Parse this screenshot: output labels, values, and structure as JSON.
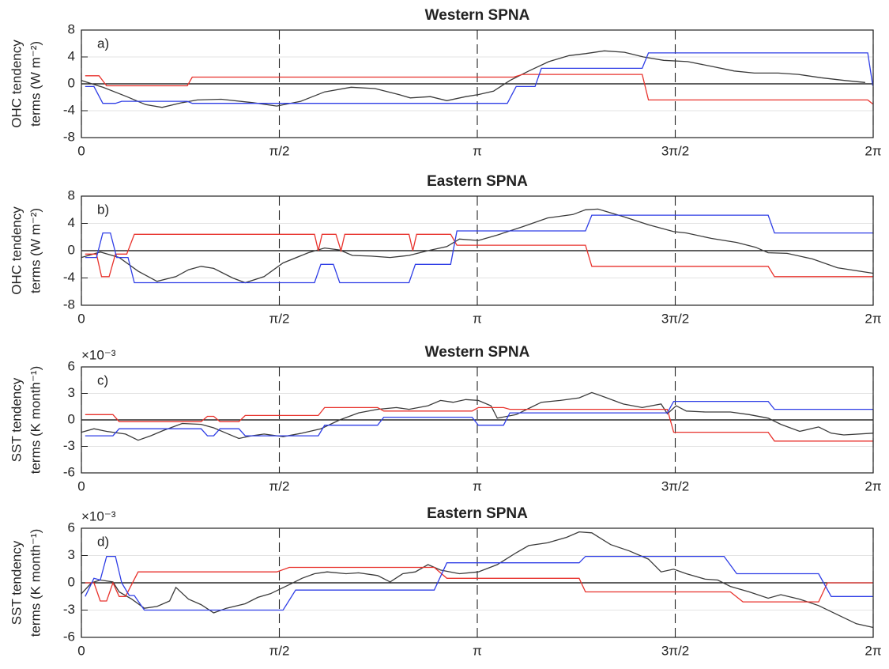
{
  "chart_data": [
    {
      "type": "line",
      "title": "Western SPNA",
      "panel_label": "a)",
      "ylabel": [
        "OHC tendency",
        "terms (W m⁻²)"
      ],
      "xlim": [
        0,
        6.2832
      ],
      "ylim": [
        -8,
        8
      ],
      "xticks": [
        0,
        {
          "value": 1.5708,
          "label": "π/2"
        },
        {
          "value": 3.1416,
          "label": "π"
        },
        {
          "value": 4.7124,
          "label": "3π/2"
        },
        {
          "value": 6.2832,
          "label": "2π"
        }
      ],
      "yticks": [
        -8,
        -4,
        0,
        4,
        8
      ],
      "xgrid": "dashed",
      "ygrid": true,
      "zero_line": true,
      "series": [
        {
          "color": "#3a3a3a",
          "x": [
            0,
            0.17,
            0.36,
            0.51,
            0.64,
            0.8,
            0.92,
            1.11,
            1.36,
            1.55,
            1.74,
            1.93,
            2.14,
            2.33,
            2.52,
            2.61,
            2.77,
            2.9,
            3.05,
            3.15,
            3.27,
            3.4,
            3.55,
            3.71,
            3.87,
            4.0,
            4.15,
            4.31,
            4.46,
            4.62,
            4.81,
            5.0,
            5.18,
            5.34,
            5.53,
            5.69,
            5.87,
            6.06,
            6.22
          ],
          "values": [
            0.5,
            -0.5,
            -1.9,
            -3.1,
            -3.5,
            -2.8,
            -2.4,
            -2.3,
            -2.8,
            -3.3,
            -2.6,
            -1.2,
            -0.5,
            -0.7,
            -1.6,
            -2.1,
            -1.9,
            -2.5,
            -1.9,
            -1.6,
            -1.1,
            0.5,
            1.9,
            3.3,
            4.2,
            4.5,
            4.9,
            4.7,
            4.0,
            3.5,
            3.3,
            2.6,
            1.9,
            1.6,
            1.6,
            1.4,
            0.9,
            0.5,
            0.2
          ]
        },
        {
          "color": "#e8322c",
          "x": [
            0.03,
            0.14,
            0.2,
            0.84,
            0.88,
            3.43,
            3.5,
            4.45,
            4.5,
            6.24,
            6.28
          ],
          "values": [
            1.2,
            1.2,
            -0.3,
            -0.3,
            1.0,
            1.0,
            1.4,
            1.4,
            -2.4,
            -2.4,
            -3.0
          ]
        },
        {
          "color": "#2f3ee6",
          "x": [
            0.03,
            0.1,
            0.17,
            0.27,
            0.32,
            0.84,
            0.88,
            3.38,
            3.45,
            3.6,
            3.65,
            4.45,
            4.5,
            6.24,
            6.28
          ],
          "values": [
            -0.4,
            -0.4,
            -2.9,
            -2.9,
            -2.6,
            -2.6,
            -2.9,
            -2.9,
            -0.4,
            -0.4,
            2.3,
            2.3,
            4.6,
            4.6,
            -0.3
          ]
        }
      ]
    },
    {
      "type": "line",
      "title": "Eastern SPNA",
      "panel_label": "b)",
      "ylabel": [
        "OHC tendency",
        "terms (W m⁻²)"
      ],
      "xlim": [
        0,
        6.2832
      ],
      "ylim": [
        -8,
        8
      ],
      "xticks": [
        0,
        {
          "value": 1.5708,
          "label": "π/2"
        },
        {
          "value": 3.1416,
          "label": "π"
        },
        {
          "value": 4.7124,
          "label": "3π/2"
        },
        {
          "value": 6.2832,
          "label": "2π"
        }
      ],
      "yticks": [
        -8,
        -4,
        0,
        4,
        8
      ],
      "xgrid": "dashed",
      "ygrid": true,
      "zero_line": true,
      "series": [
        {
          "color": "#3a3a3a",
          "x": [
            0,
            0.15,
            0.3,
            0.45,
            0.6,
            0.75,
            0.85,
            0.95,
            1.05,
            1.2,
            1.3,
            1.45,
            1.6,
            1.8,
            1.93,
            2.05,
            2.15,
            2.3,
            2.45,
            2.6,
            2.75,
            2.9,
            3.0,
            3.15,
            3.3,
            3.5,
            3.7,
            3.9,
            4.0,
            4.1,
            4.3,
            4.5,
            4.7,
            4.8,
            5.0,
            5.2,
            5.35,
            5.45,
            5.6,
            5.8,
            6.0,
            6.28
          ],
          "values": [
            -1.0,
            -0.2,
            -1.0,
            -3.0,
            -4.5,
            -3.8,
            -2.8,
            -2.3,
            -2.6,
            -4.0,
            -4.7,
            -3.8,
            -1.8,
            -0.3,
            0.4,
            0.1,
            -0.7,
            -0.8,
            -1.0,
            -0.7,
            0.0,
            0.6,
            1.7,
            1.5,
            2.3,
            3.5,
            4.8,
            5.3,
            6.0,
            6.1,
            5.0,
            3.8,
            2.8,
            2.6,
            1.8,
            1.2,
            0.5,
            -0.3,
            -0.4,
            -1.2,
            -2.5,
            -3.3
          ]
        },
        {
          "color": "#e8322c",
          "x": [
            0.03,
            0.12,
            0.16,
            0.22,
            0.27,
            0.36,
            0.42,
            1.85,
            1.88,
            1.91,
            2.02,
            2.06,
            2.09,
            2.6,
            2.63,
            2.66,
            2.93,
            2.98,
            4.0,
            4.05,
            5.45,
            5.5,
            6.28
          ],
          "values": [
            -0.5,
            -0.5,
            -3.8,
            -3.8,
            -0.5,
            -0.5,
            2.4,
            2.4,
            0,
            2.4,
            2.4,
            0,
            2.4,
            2.4,
            0,
            2.4,
            2.4,
            0.8,
            0.8,
            -2.3,
            -2.3,
            -3.8,
            -3.8
          ]
        },
        {
          "color": "#2f3ee6",
          "x": [
            0.03,
            0.12,
            0.17,
            0.23,
            0.28,
            0.37,
            0.42,
            1.85,
            1.9,
            2.0,
            2.05,
            2.6,
            2.65,
            2.93,
            2.98,
            4.0,
            4.05,
            5.45,
            5.5,
            6.28
          ],
          "values": [
            -1.0,
            -1.0,
            2.6,
            2.6,
            -1.0,
            -1.0,
            -4.7,
            -4.7,
            -2.0,
            -2.0,
            -4.7,
            -4.7,
            -2.0,
            -2.0,
            2.9,
            2.9,
            5.2,
            5.2,
            2.6,
            2.6
          ]
        }
      ]
    },
    {
      "type": "line",
      "title": "Western SPNA",
      "panel_label": "c)",
      "ylabel": [
        "SST tendency",
        "terms (K month⁻¹)"
      ],
      "y_multiplier": "×10⁻³",
      "xlim": [
        0,
        6.2832
      ],
      "ylim": [
        -6,
        6
      ],
      "xticks": [
        0,
        {
          "value": 1.5708,
          "label": "π/2"
        },
        {
          "value": 3.1416,
          "label": "π"
        },
        {
          "value": 4.7124,
          "label": "3π/2"
        },
        {
          "value": 6.2832,
          "label": "2π"
        }
      ],
      "yticks": [
        -6,
        -3,
        0,
        3,
        6
      ],
      "xgrid": "dashed",
      "ygrid": true,
      "zero_line": true,
      "series": [
        {
          "color": "#3a3a3a",
          "x": [
            0,
            0.1,
            0.2,
            0.35,
            0.45,
            0.55,
            0.65,
            0.8,
            0.95,
            1.05,
            1.15,
            1.25,
            1.35,
            1.45,
            1.6,
            1.75,
            1.9,
            2.05,
            2.2,
            2.35,
            2.5,
            2.6,
            2.75,
            2.85,
            2.95,
            3.05,
            3.15,
            3.25,
            3.3,
            3.45,
            3.55,
            3.65,
            3.8,
            3.95,
            4.05,
            4.15,
            4.3,
            4.45,
            4.6,
            4.65,
            4.72,
            4.8,
            4.95,
            5.15,
            5.3,
            5.45,
            5.55,
            5.7,
            5.85,
            5.95,
            6.05,
            6.28
          ],
          "values": [
            -1.4,
            -1.0,
            -1.3,
            -1.6,
            -2.3,
            -1.8,
            -1.2,
            -0.4,
            -0.5,
            -0.9,
            -1.5,
            -2.1,
            -1.8,
            -1.6,
            -1.9,
            -1.5,
            -1.0,
            0.0,
            0.8,
            1.2,
            1.4,
            1.2,
            1.6,
            2.2,
            2.0,
            2.3,
            2.2,
            1.6,
            0.2,
            0.6,
            1.3,
            2.0,
            2.2,
            2.5,
            3.1,
            2.6,
            1.8,
            1.4,
            1.8,
            0.7,
            1.6,
            1.0,
            0.9,
            0.9,
            0.6,
            0.2,
            -0.5,
            -1.3,
            -0.8,
            -1.5,
            -1.7,
            -1.5
          ]
        },
        {
          "color": "#e8322c",
          "x": [
            0.03,
            0.25,
            0.3,
            0.95,
            1.0,
            1.05,
            1.1,
            1.25,
            1.3,
            1.88,
            1.93,
            2.35,
            2.4,
            3.1,
            3.15,
            3.35,
            3.4,
            4.65,
            4.7,
            5.45,
            5.5,
            6.28
          ],
          "values": [
            0.6,
            0.6,
            -0.2,
            -0.2,
            0.4,
            0.4,
            -0.2,
            -0.2,
            0.5,
            0.5,
            1.4,
            1.4,
            1.0,
            1.0,
            1.4,
            1.4,
            1.2,
            1.2,
            -1.4,
            -1.4,
            -2.4,
            -2.4
          ]
        },
        {
          "color": "#2f3ee6",
          "x": [
            0.03,
            0.25,
            0.3,
            0.95,
            1.0,
            1.05,
            1.1,
            1.25,
            1.3,
            1.88,
            1.93,
            2.35,
            2.4,
            3.1,
            3.15,
            3.35,
            3.4,
            4.65,
            4.7,
            5.45,
            5.5,
            6.28
          ],
          "values": [
            -1.8,
            -1.8,
            -1.0,
            -1.0,
            -1.8,
            -1.8,
            -1.0,
            -1.0,
            -1.8,
            -1.8,
            -0.6,
            -0.6,
            0.3,
            0.3,
            -0.6,
            -0.6,
            0.8,
            0.8,
            2.1,
            2.1,
            1.2,
            1.2
          ]
        }
      ]
    },
    {
      "type": "line",
      "title": "Eastern SPNA",
      "panel_label": "d)",
      "ylabel": [
        "SST tendency",
        "terms (K month⁻¹)"
      ],
      "y_multiplier": "×10⁻³",
      "xlim": [
        0,
        6.2832
      ],
      "ylim": [
        -6,
        6
      ],
      "xticks": [
        0,
        {
          "value": 1.5708,
          "label": "π/2"
        },
        {
          "value": 3.1416,
          "label": "π"
        },
        {
          "value": 4.7124,
          "label": "3π/2"
        },
        {
          "value": 6.2832,
          "label": "2π"
        }
      ],
      "yticks": [
        -6,
        -3,
        0,
        3,
        6
      ],
      "xgrid": "dashed",
      "ygrid": true,
      "zero_line": true,
      "series": [
        {
          "color": "#3a3a3a",
          "x": [
            0,
            0.08,
            0.15,
            0.25,
            0.3,
            0.4,
            0.5,
            0.6,
            0.7,
            0.75,
            0.85,
            0.95,
            1.05,
            1.15,
            1.3,
            1.4,
            1.5,
            1.65,
            1.75,
            1.85,
            1.95,
            2.1,
            2.2,
            2.35,
            2.45,
            2.55,
            2.65,
            2.75,
            2.85,
            3.0,
            3.15,
            3.3,
            3.45,
            3.55,
            3.7,
            3.85,
            3.95,
            4.05,
            4.2,
            4.35,
            4.5,
            4.6,
            4.7,
            4.8,
            4.95,
            5.05,
            5.15,
            5.3,
            5.45,
            5.55,
            5.7,
            5.85,
            6.0,
            6.15,
            6.28
          ],
          "values": [
            -1.2,
            0.0,
            0.3,
            0.1,
            -1.0,
            -1.8,
            -2.8,
            -2.6,
            -2.0,
            -0.5,
            -1.8,
            -2.4,
            -3.3,
            -2.8,
            -2.3,
            -1.6,
            -1.2,
            -0.2,
            0.5,
            1.0,
            1.2,
            1.0,
            1.1,
            0.8,
            0.1,
            1.0,
            1.2,
            2.0,
            1.4,
            1.0,
            1.2,
            2.0,
            3.3,
            4.1,
            4.4,
            5.0,
            5.6,
            5.5,
            4.2,
            3.5,
            2.6,
            1.2,
            1.5,
            1.0,
            0.4,
            0.3,
            -0.4,
            -1.0,
            -1.7,
            -1.3,
            -1.8,
            -2.5,
            -3.5,
            -4.5,
            -4.9
          ]
        },
        {
          "color": "#e8322c",
          "x": [
            0.03,
            0.1,
            0.15,
            0.2,
            0.25,
            0.3,
            0.35,
            0.45,
            1.55,
            1.65,
            2.8,
            2.9,
            3.95,
            4.0,
            5.15,
            5.25,
            5.85,
            5.92,
            6.28
          ],
          "values": [
            0,
            0,
            -2.0,
            -2.0,
            0,
            -1.5,
            -1.5,
            1.2,
            1.2,
            1.7,
            1.7,
            0.5,
            0.5,
            -1.0,
            -1.0,
            -2.1,
            -2.1,
            0,
            0
          ]
        },
        {
          "color": "#2f3ee6",
          "x": [
            0.03,
            0.1,
            0.15,
            0.2,
            0.27,
            0.32,
            0.38,
            0.42,
            0.5,
            1.6,
            1.7,
            2.8,
            2.9,
            3.95,
            4.0,
            5.1,
            5.2,
            5.85,
            5.95,
            6.28
          ],
          "values": [
            -1.5,
            0.5,
            0.3,
            2.9,
            2.9,
            0.0,
            -1.4,
            -1.4,
            -3.0,
            -3.0,
            -0.8,
            -0.8,
            2.2,
            2.2,
            2.9,
            2.9,
            1.0,
            1.0,
            -1.5,
            -1.5
          ]
        }
      ]
    }
  ]
}
